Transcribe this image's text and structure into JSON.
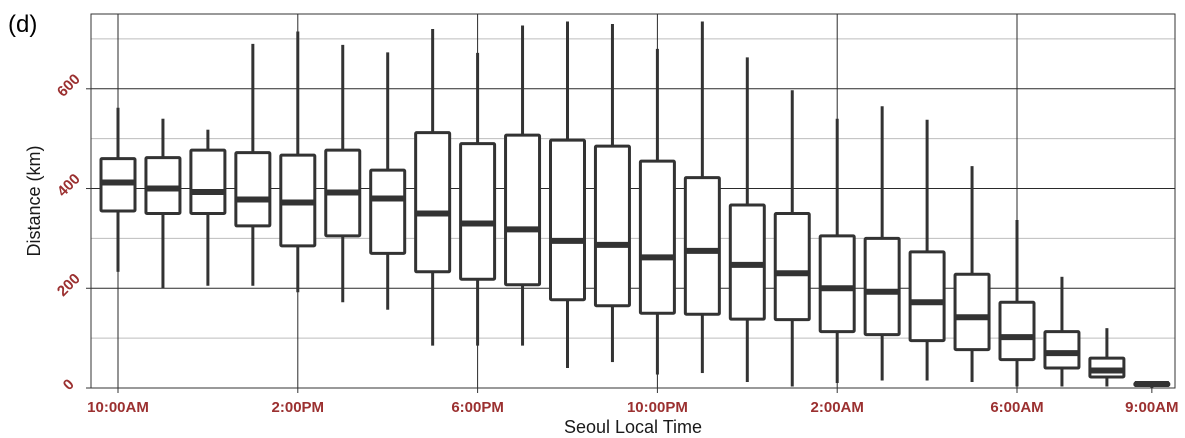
{
  "panel_label": "(d)",
  "colors": {
    "tick_label": "#9b3030",
    "box_stroke": "#333333",
    "grid_major": "#2a2a2a",
    "grid_minor": "#bdbdbd",
    "background": "#ffffff"
  },
  "chart_data": {
    "type": "boxplot",
    "xlabel": "Seoul Local Time",
    "ylabel": "Distance (km)",
    "ylim": [
      0,
      750
    ],
    "y_ticks": [
      0,
      200,
      400,
      600
    ],
    "y_tick_labels": [
      "0",
      "200",
      "400",
      "600"
    ],
    "y_minor_ticks": [
      100,
      300,
      500,
      700
    ],
    "x_tick_labels": [
      {
        "label": "10:00AM",
        "at_index": 0
      },
      {
        "label": "2:00PM",
        "at_index": 4
      },
      {
        "label": "6:00PM",
        "at_index": 8
      },
      {
        "label": "10:00PM",
        "at_index": 12
      },
      {
        "label": "2:00AM",
        "at_index": 16
      },
      {
        "label": "6:00AM",
        "at_index": 20
      },
      {
        "label": "9:00AM",
        "at_index": 23
      }
    ],
    "x_vertical_grid_indices": [
      0,
      4,
      8,
      12,
      16,
      20
    ],
    "grid": true,
    "legend": "none",
    "categories": [
      "10AM",
      "11AM",
      "12PM",
      "1PM",
      "2PM",
      "3PM",
      "4PM",
      "5PM",
      "6PM",
      "7PM",
      "8PM",
      "9PM",
      "10PM",
      "11PM",
      "12AM",
      "1AM",
      "2AM",
      "3AM",
      "4AM",
      "5AM",
      "6AM",
      "7AM",
      "8AM",
      "9AM"
    ],
    "boxes": [
      {
        "hour": "10AM",
        "min": 233,
        "q1": 355,
        "median": 412,
        "q3": 460,
        "max": 562
      },
      {
        "hour": "11AM",
        "min": 200,
        "q1": 350,
        "median": 400,
        "q3": 462,
        "max": 540
      },
      {
        "hour": "12PM",
        "min": 205,
        "q1": 350,
        "median": 393,
        "q3": 477,
        "max": 518
      },
      {
        "hour": "1PM",
        "min": 205,
        "q1": 325,
        "median": 378,
        "q3": 472,
        "max": 690
      },
      {
        "hour": "2PM",
        "min": 192,
        "q1": 285,
        "median": 372,
        "q3": 467,
        "max": 715
      },
      {
        "hour": "3PM",
        "min": 172,
        "q1": 305,
        "median": 392,
        "q3": 477,
        "max": 688
      },
      {
        "hour": "4PM",
        "min": 157,
        "q1": 270,
        "median": 380,
        "q3": 437,
        "max": 673
      },
      {
        "hour": "5PM",
        "min": 85,
        "q1": 233,
        "median": 350,
        "q3": 512,
        "max": 720
      },
      {
        "hour": "6PM",
        "min": 85,
        "q1": 218,
        "median": 330,
        "q3": 490,
        "max": 672
      },
      {
        "hour": "7PM",
        "min": 85,
        "q1": 207,
        "median": 318,
        "q3": 507,
        "max": 727
      },
      {
        "hour": "8PM",
        "min": 40,
        "q1": 177,
        "median": 295,
        "q3": 497,
        "max": 735
      },
      {
        "hour": "9PM",
        "min": 52,
        "q1": 165,
        "median": 287,
        "q3": 485,
        "max": 730
      },
      {
        "hour": "10PM",
        "min": 27,
        "q1": 150,
        "median": 262,
        "q3": 455,
        "max": 680
      },
      {
        "hour": "11PM",
        "min": 30,
        "q1": 148,
        "median": 275,
        "q3": 422,
        "max": 735
      },
      {
        "hour": "12AM",
        "min": 12,
        "q1": 138,
        "median": 247,
        "q3": 367,
        "max": 663
      },
      {
        "hour": "1AM",
        "min": 3,
        "q1": 137,
        "median": 230,
        "q3": 350,
        "max": 597
      },
      {
        "hour": "2AM",
        "min": 10,
        "q1": 113,
        "median": 200,
        "q3": 305,
        "max": 540
      },
      {
        "hour": "3AM",
        "min": 15,
        "q1": 107,
        "median": 193,
        "q3": 300,
        "max": 565
      },
      {
        "hour": "4AM",
        "min": 15,
        "q1": 95,
        "median": 172,
        "q3": 273,
        "max": 538
      },
      {
        "hour": "5AM",
        "min": 12,
        "q1": 77,
        "median": 142,
        "q3": 228,
        "max": 445
      },
      {
        "hour": "6AM",
        "min": 3,
        "q1": 57,
        "median": 102,
        "q3": 172,
        "max": 337
      },
      {
        "hour": "7AM",
        "min": 3,
        "q1": 40,
        "median": 70,
        "q3": 113,
        "max": 223
      },
      {
        "hour": "8AM",
        "min": 3,
        "q1": 22,
        "median": 35,
        "q3": 60,
        "max": 120
      },
      {
        "hour": "9AM",
        "min": 0,
        "q1": 5,
        "median": 8,
        "q3": 10,
        "max": 12
      }
    ]
  }
}
